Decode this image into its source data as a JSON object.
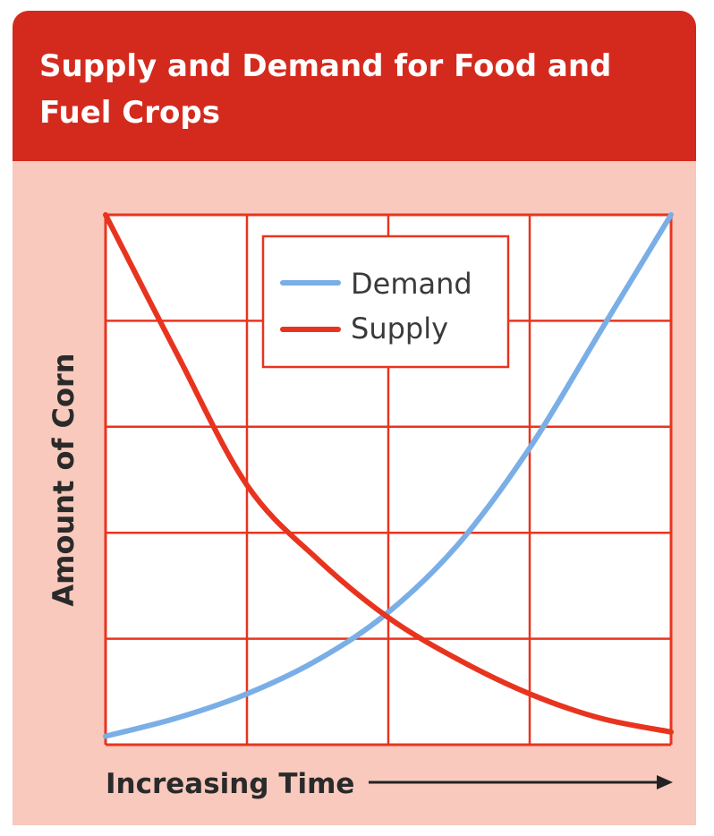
{
  "chart_data": {
    "type": "line",
    "title": "Supply and Demand for Food and Fuel Crops",
    "xlabel": "Increasing Time",
    "ylabel": "Amount of Corn",
    "xlim": [
      0,
      4
    ],
    "ylim": [
      0,
      5
    ],
    "grid": true,
    "legend_placement": "top-center",
    "series": [
      {
        "name": "Demand",
        "color": "#7aaee6",
        "x": [
          0,
          0.5,
          1,
          1.5,
          2,
          2.5,
          3,
          3.5,
          4
        ],
        "values": [
          0.08,
          0.25,
          0.48,
          0.8,
          1.25,
          1.9,
          2.8,
          3.9,
          5.0
        ]
      },
      {
        "name": "Supply",
        "color": "#e8341f",
        "x": [
          0,
          0.5,
          1,
          1.5,
          2,
          2.5,
          3,
          3.5,
          4
        ],
        "values": [
          5.0,
          3.7,
          2.45,
          1.75,
          1.2,
          0.8,
          0.48,
          0.25,
          0.12
        ]
      }
    ]
  }
}
